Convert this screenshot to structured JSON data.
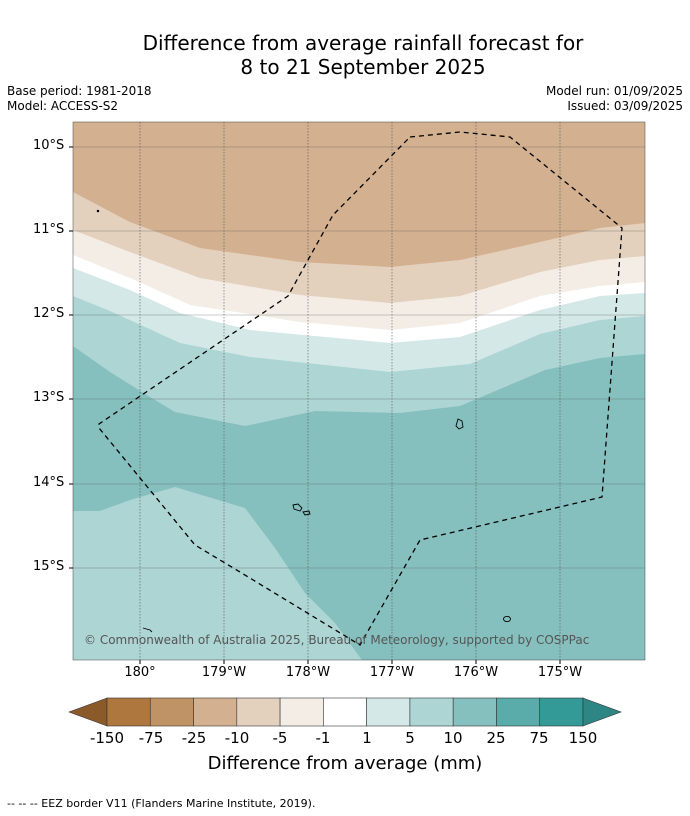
{
  "header": {
    "title_line1": "Difference from average rainfall forecast for",
    "title_line2": "8 to 21 September 2025",
    "base_period": "Base period: 1981-2018",
    "model": "Model: ACCESS-S2",
    "model_run": "Model run: 01/09/2025",
    "issued": "Issued: 03/09/2025"
  },
  "map": {
    "lat_labels": [
      "10°S",
      "11°S",
      "12°S",
      "13°S",
      "14°S",
      "15°S"
    ],
    "lon_labels": [
      "180°",
      "179°W",
      "178°W",
      "177°W",
      "176°W",
      "175°W"
    ],
    "copyright": "© Commonwealth of Australia 2025, Bureau of Meteorology, supported by COSPPac"
  },
  "colorbar": {
    "labels": [
      "-150",
      "-75",
      "-25",
      "-10",
      "-5",
      "-1",
      "1",
      "5",
      "10",
      "25",
      "75",
      "150"
    ],
    "colors": [
      "#8b5a2b",
      "#ae773e",
      "#c09366",
      "#d3b08f",
      "#e3d0bd",
      "#f3ede6",
      "#ffffff",
      "#d4e8e7",
      "#acd5d4",
      "#85c0bf",
      "#5aacab",
      "#349a97",
      "#2d8584"
    ],
    "title": "Difference from average (mm)"
  },
  "footnote": "--  --  -- EEZ border V11 (Flanders Marine Institute, 2019)."
}
